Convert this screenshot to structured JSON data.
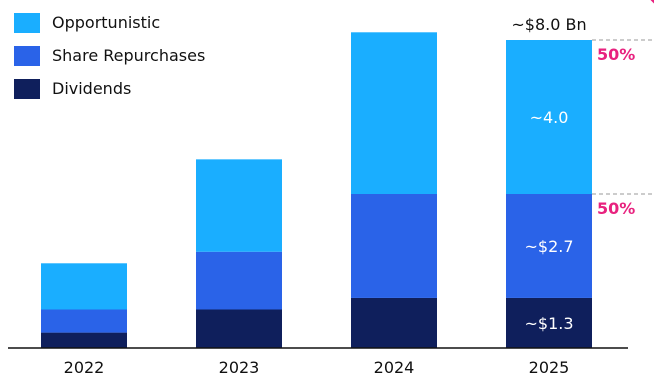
{
  "chart_data": {
    "type": "bar",
    "stacked": true,
    "categories": [
      "2022",
      "2023",
      "2024",
      "2025"
    ],
    "series": [
      {
        "name": "Dividends",
        "color": "#0f1f5c",
        "values": [
          0.4,
          1.0,
          1.3,
          1.3
        ],
        "labels": [
          "",
          "",
          "",
          "~$1.3"
        ]
      },
      {
        "name": "Share Repurchases",
        "color": "#2a63e8",
        "values": [
          0.6,
          1.5,
          2.7,
          2.7
        ],
        "labels": [
          "",
          "",
          "",
          "~$2.7"
        ]
      },
      {
        "name": "Opportunistic",
        "color": "#1aaeff",
        "values": [
          1.2,
          2.4,
          4.2,
          4.0
        ],
        "labels": [
          "",
          "",
          "",
          "~4.0"
        ]
      }
    ],
    "total_label": "~$8.0 Bn",
    "percent_annotations": [
      "50%",
      "50%"
    ],
    "percent_color": "#e8227f",
    "ylim": [
      0,
      8.0
    ],
    "grid": false,
    "legend_position": "top-left"
  }
}
